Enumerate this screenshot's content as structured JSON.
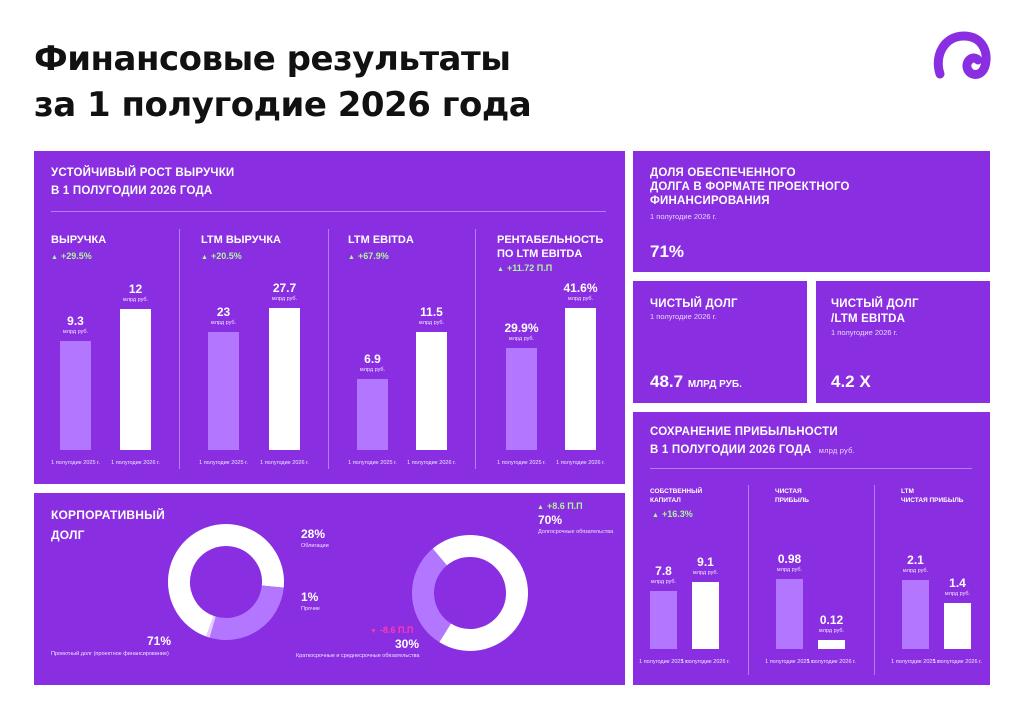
{
  "title": {
    "line1": "Финансовые результаты",
    "line2": "за 1 полугодие 2026 года"
  },
  "logo": {
    "icon": "brand-swirl-icon",
    "color": "#8a2ee2"
  },
  "colors": {
    "panel": "#8a2ee2",
    "bar_prev": "#b377ff",
    "bar_curr": "#ffffff",
    "positive": "#aef59a",
    "negative": "#ff3ab0"
  },
  "revenue_section": {
    "heading_line1": "Устойчивый рост выручки",
    "heading_line2": "в 1 полугодии 2026 года"
  },
  "debt_section": {
    "heading_line1": "Корпоративный",
    "heading_line2": "долг"
  },
  "share_panel": {
    "heading_line1": "Доля обеспеченного",
    "heading_line2": "долга в формате проектного",
    "heading_line3": "финансирования",
    "period": "1 полугодие 2026 г.",
    "value": "71%"
  },
  "net_debt_panel": {
    "heading": "Чистый долг",
    "period": "1 полугодие 2026 г.",
    "value": "48.7",
    "unit": "МЛРД РУБ."
  },
  "ratio_panel": {
    "heading_line1": "Чистый долг",
    "heading_line2": "/LTM EBITDA",
    "period": "1 полугодие 2026 г.",
    "value": "4.2 X"
  },
  "profit_section": {
    "heading_line1": "Сохранение прибыльности",
    "heading_line2": "в 1 полугодии 2026 года",
    "unit_note": "млрд руб."
  },
  "chart_data": [
    {
      "type": "bar",
      "title": "Выручка",
      "delta": "+29.5%",
      "categories": [
        "1 полугодие 2025 г.",
        "1 полугодие 2026 г."
      ],
      "values": [
        9.3,
        12
      ],
      "value_labels": [
        "9.3",
        "12"
      ],
      "unit": "млрд руб.",
      "ylim": [
        0,
        14
      ]
    },
    {
      "type": "bar",
      "title": "LTM выручка",
      "delta": "+20.5%",
      "categories": [
        "1 полугодие 2025 г.",
        "1 полугодие 2026 г."
      ],
      "values": [
        23,
        27.7
      ],
      "value_labels": [
        "23",
        "27.7"
      ],
      "unit": "млрд руб.",
      "ylim": [
        0,
        32
      ]
    },
    {
      "type": "bar",
      "title": "LTM EBITDA",
      "delta": "+67.9%",
      "categories": [
        "1 полугодие 2025 г.",
        "1 полугодие 2026 г."
      ],
      "values": [
        6.9,
        11.5
      ],
      "value_labels": [
        "6.9",
        "11.5"
      ],
      "unit": "млрд руб.",
      "ylim": [
        0,
        16
      ]
    },
    {
      "type": "bar",
      "title_line1": "Рентабельность",
      "title_line2": "по LTM EBITDA",
      "delta": "+11.72 П.П",
      "categories": [
        "1 полугодие 2025 г.",
        "1 полугодие 2026 г."
      ],
      "values": [
        29.9,
        41.6
      ],
      "value_labels": [
        "29.9%",
        "41.6%"
      ],
      "unit": "млрд руб.",
      "ylim": [
        0,
        48
      ]
    },
    {
      "type": "pie",
      "slices": [
        {
          "label": "Проектный долг (проектное финансирование)",
          "value": 71,
          "value_label": "71%"
        },
        {
          "label": "Облигации",
          "value": 28,
          "value_label": "28%"
        },
        {
          "label": "Прочие",
          "value": 1,
          "value_label": "1%"
        }
      ]
    },
    {
      "type": "pie",
      "slices": [
        {
          "label": "Долгосрочные обязательства",
          "value": 70,
          "value_label": "70%",
          "delta": "+8.6 П.П"
        },
        {
          "label": "Краткосрочные и среднесрочные обязательства",
          "value": 30,
          "value_label": "30%",
          "delta": "-8.6 П.П"
        }
      ]
    },
    {
      "type": "bar",
      "title_line1": "Собственный",
      "title_line2": "капитал",
      "delta": "+16.3%",
      "categories": [
        "1 полугодие 2025 г.",
        "1 полугодие 2026 г."
      ],
      "values": [
        7.8,
        9.1
      ],
      "value_labels": [
        "7.8",
        "9.1"
      ],
      "unit": "млрд руб.",
      "ylim": [
        0,
        12
      ]
    },
    {
      "type": "bar",
      "title_line1": "Чистая",
      "title_line2": "прибыль",
      "categories": [
        "1 полугодие 2025 г.",
        "1 полугодие 2026 г."
      ],
      "values": [
        0.98,
        0.12
      ],
      "value_labels": [
        "0.98",
        "0.12"
      ],
      "unit": "млрд руб.",
      "ylim": [
        0,
        1.25
      ]
    },
    {
      "type": "bar",
      "title_line1": "LTM",
      "title_line2": "чистая прибыль",
      "categories": [
        "1 полугодие 2025 г.",
        "1 полугодие 2026 г."
      ],
      "values": [
        2.1,
        1.4
      ],
      "value_labels": [
        "2.1",
        "1.4"
      ],
      "unit": "млрд руб.",
      "ylim": [
        0,
        2.7
      ]
    }
  ]
}
